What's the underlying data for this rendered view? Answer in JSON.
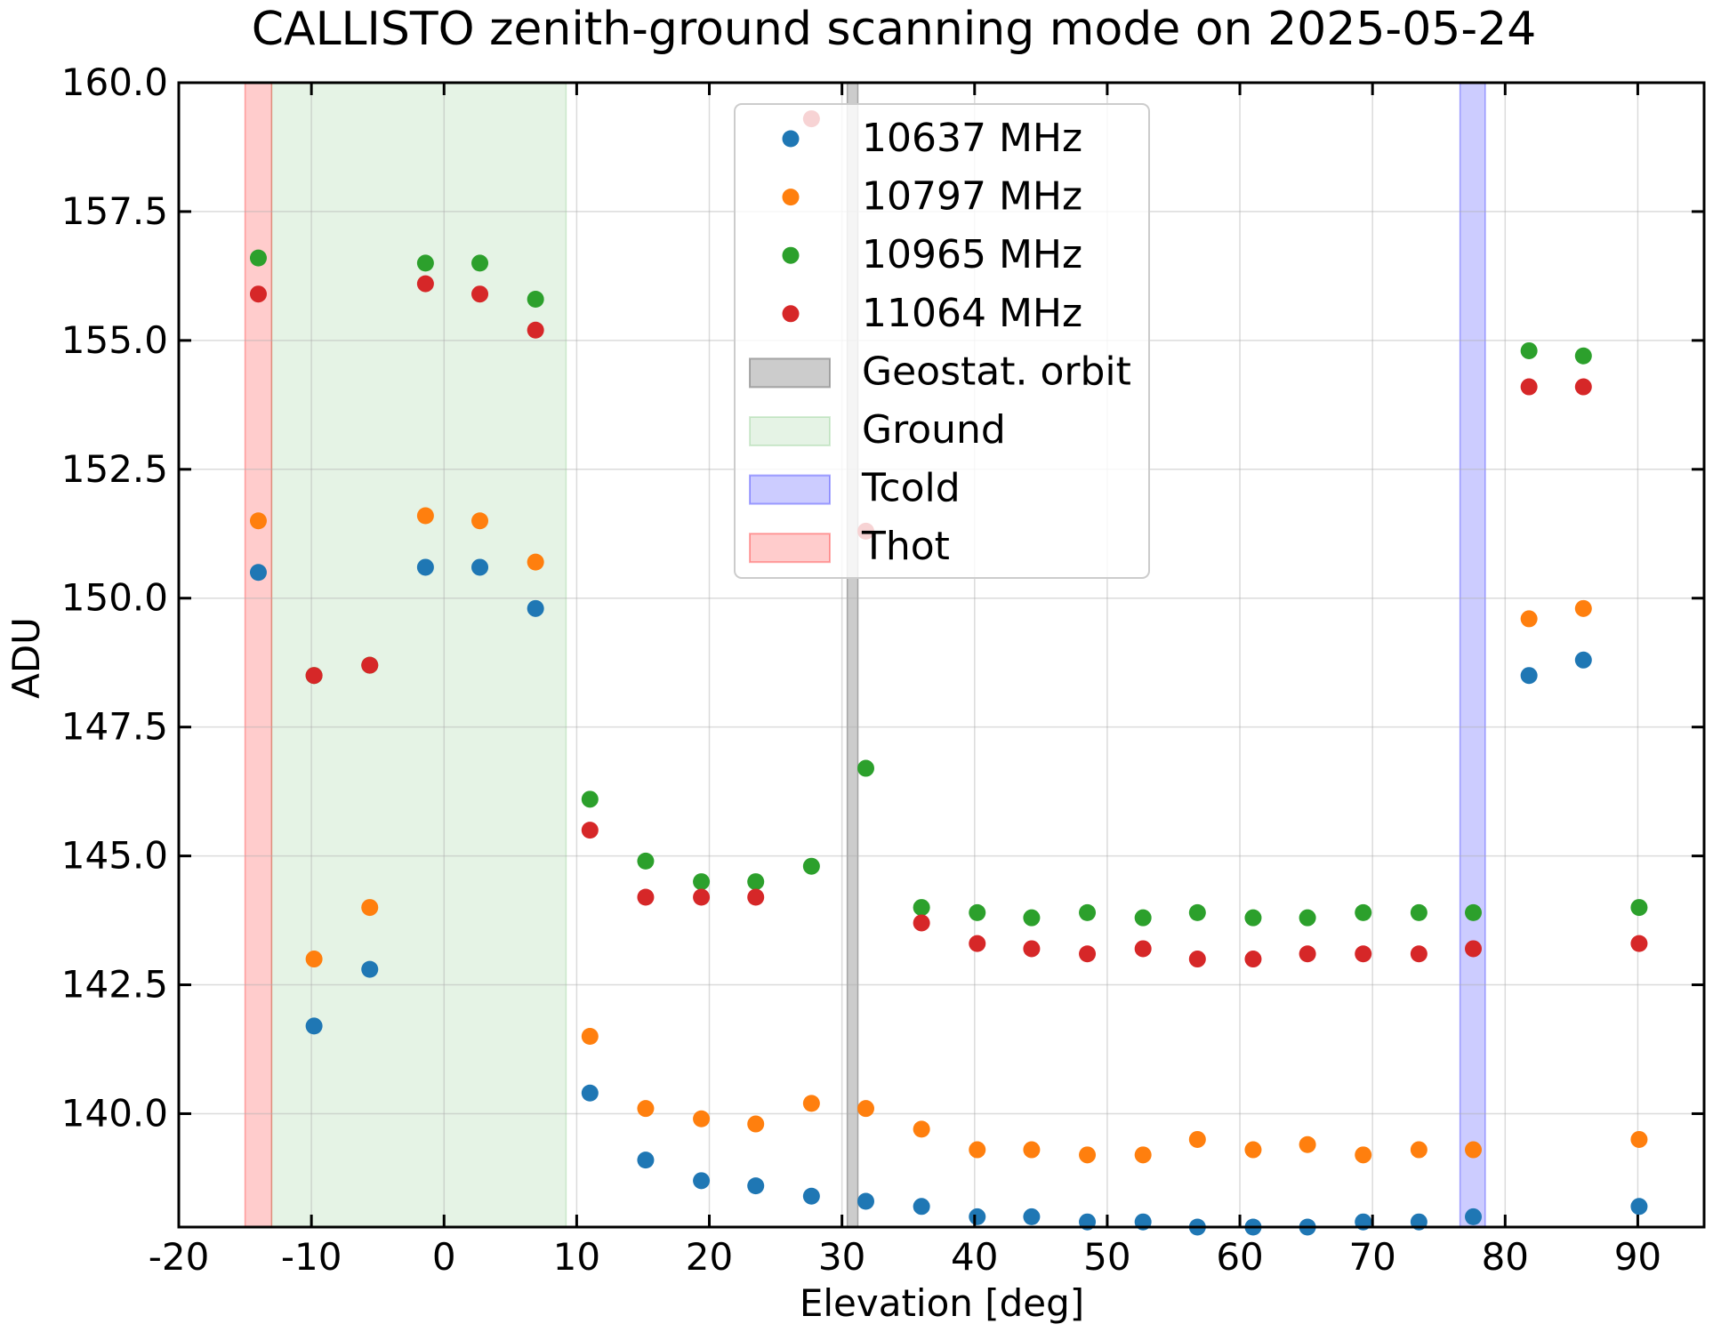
{
  "chart_data": {
    "type": "scatter",
    "title": "CALLISTO zenith-ground scanning mode on 2025-05-24",
    "xlabel": "Elevation [deg]",
    "ylabel": "ADU",
    "xlim": [
      -20,
      95
    ],
    "ylim": [
      137.8,
      160
    ],
    "xticks": [
      -20,
      -10,
      0,
      10,
      20,
      30,
      40,
      50,
      60,
      70,
      80,
      90
    ],
    "yticks": [
      140.0,
      142.5,
      145.0,
      147.5,
      150.0,
      152.5,
      155.0,
      157.5,
      160.0
    ],
    "grid": true,
    "legend_position": "top-center",
    "x": [
      -14,
      -9.8,
      -5.6,
      -1.4,
      2.7,
      6.9,
      11.0,
      15.2,
      19.4,
      23.5,
      27.7,
      31.8,
      36.0,
      40.2,
      44.3,
      48.5,
      52.7,
      56.8,
      61.0,
      65.1,
      69.3,
      73.5,
      77.6,
      81.8,
      85.9,
      90.1
    ],
    "series": [
      {
        "name": "10637 MHz",
        "color": "#1f77b4",
        "values": [
          150.5,
          141.7,
          142.8,
          150.6,
          150.6,
          149.8,
          140.4,
          139.1,
          138.7,
          138.6,
          138.4,
          138.3,
          138.2,
          138.0,
          138.0,
          137.9,
          137.9,
          137.8,
          137.8,
          137.8,
          137.9,
          137.9,
          138.0,
          148.5,
          148.8,
          138.2
        ]
      },
      {
        "name": "10797 MHz",
        "color": "#ff7f0e",
        "values": [
          151.5,
          143.0,
          144.0,
          151.6,
          151.5,
          150.7,
          141.5,
          140.1,
          139.9,
          139.8,
          140.2,
          140.1,
          139.7,
          139.3,
          139.3,
          139.2,
          139.2,
          139.5,
          139.3,
          139.4,
          139.2,
          139.3,
          139.3,
          149.6,
          149.8,
          139.5
        ]
      },
      {
        "name": "10965 MHz",
        "color": "#2ca02c",
        "values": [
          156.6,
          148.5,
          148.7,
          156.5,
          156.5,
          155.8,
          146.1,
          144.9,
          144.5,
          144.5,
          144.8,
          146.7,
          144.0,
          143.9,
          143.8,
          143.9,
          143.8,
          143.9,
          143.8,
          143.8,
          143.9,
          143.9,
          143.9,
          154.8,
          154.7,
          144.0
        ]
      },
      {
        "name": "11064 MHz",
        "color": "#d62728",
        "values": [
          155.9,
          148.5,
          148.7,
          156.1,
          155.9,
          155.2,
          145.5,
          144.2,
          144.2,
          144.2,
          159.3,
          151.3,
          143.7,
          143.3,
          143.2,
          143.1,
          143.2,
          143.0,
          143.0,
          143.1,
          143.1,
          143.1,
          143.2,
          154.1,
          154.1,
          143.3
        ]
      }
    ],
    "spans": [
      {
        "name": "Geostat. orbit",
        "color": "#808080",
        "opacity": 0.4,
        "x_range": [
          30.4,
          31.2
        ]
      },
      {
        "name": "Ground",
        "color": "#2ca02c",
        "opacity": 0.12,
        "x_range": [
          -13,
          9.2
        ]
      },
      {
        "name": "Tcold",
        "color": "#0000ff",
        "opacity": 0.2,
        "x_range": [
          76.6,
          78.5
        ]
      },
      {
        "name": "Thot",
        "color": "#ff0000",
        "opacity": 0.2,
        "x_range": [
          -15,
          -13
        ]
      }
    ]
  }
}
